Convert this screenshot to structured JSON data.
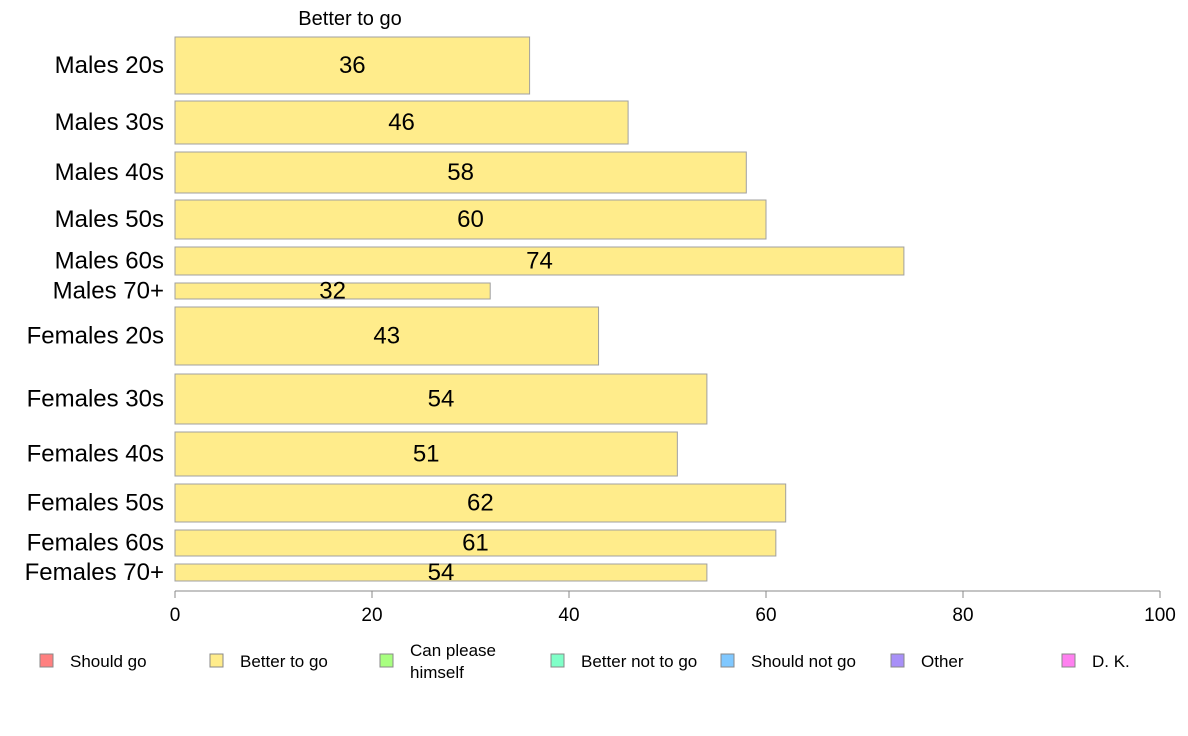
{
  "chart_data": {
    "type": "bar",
    "orientation": "horizontal",
    "title": "",
    "column_title": "Better to go",
    "xlabel": "",
    "ylabel": "",
    "xlim": [
      0,
      100
    ],
    "xticks": [
      "0",
      "20",
      "40",
      "60",
      "80",
      "100"
    ],
    "grid": false,
    "legend_position": "bottom",
    "categories": [
      "Males 20s",
      "Males 30s",
      "Males 40s",
      "Males 50s",
      "Males 60s",
      "Males 70+",
      "Females 20s",
      "Females 30s",
      "Females 40s",
      "Females 50s",
      "Females 60s",
      "Females 70+"
    ],
    "series": [
      {
        "name": "Better to go",
        "color": "#ffec8b",
        "values": [
          36,
          46,
          58,
          60,
          74,
          32,
          43,
          54,
          51,
          62,
          61,
          54
        ]
      }
    ],
    "legend": [
      {
        "label": "Should go",
        "color": "#ff8080"
      },
      {
        "label": "Better to go",
        "color": "#ffec8b"
      },
      {
        "label": "Can please himself",
        "lines": [
          "Can please",
          "himself"
        ],
        "color": "#a8ff80"
      },
      {
        "label": "Better not to go",
        "color": "#80ffc8"
      },
      {
        "label": "Should not go",
        "color": "#80c8ff"
      },
      {
        "label": "Other",
        "color": "#a890f8"
      },
      {
        "label": "D. K.",
        "color": "#ff80f0"
      }
    ]
  }
}
